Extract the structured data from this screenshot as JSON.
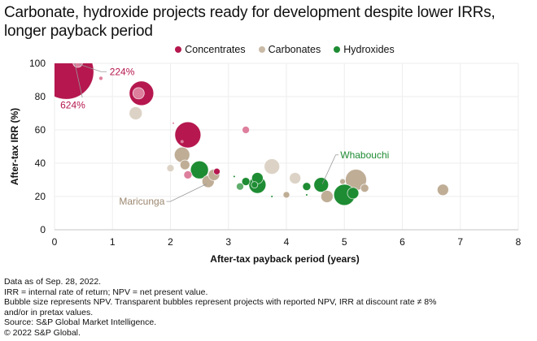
{
  "chart_data": {
    "type": "scatter",
    "subtype": "bubble",
    "title": "Carbonate, hydroxide projects ready for development despite lower IRRs, longer payback period",
    "xlabel": "After-tax payback period (years)",
    "ylabel": "After-tax IRR (%)",
    "xlim": [
      0,
      8
    ],
    "ylim": [
      0,
      100
    ],
    "xticks": [
      "0",
      "1",
      "2",
      "3",
      "4",
      "5",
      "6",
      "7",
      "8"
    ],
    "yticks": [
      "0",
      "20",
      "40",
      "60",
      "80",
      "100"
    ],
    "grid": true,
    "legend_position": "top-center",
    "legend": [
      {
        "name": "Concentrates",
        "color": "#b5174e"
      },
      {
        "name": "Carbonates",
        "color": "#bfad96"
      },
      {
        "name": "Hydroxides",
        "color": "#1e8c33"
      }
    ],
    "size_encoding": "NPV",
    "series": [
      {
        "name": "Concentrates",
        "color": "#b5174e",
        "points": [
          {
            "x": 0.2,
            "y": 624,
            "size": 34,
            "transparent": false,
            "label": "624%",
            "clipped": true
          },
          {
            "x": 0.4,
            "y": 224,
            "size": 6,
            "transparent": true,
            "label": "224%",
            "clipped": true
          },
          {
            "x": 0.8,
            "y": 91,
            "size": 2.5,
            "transparent": true
          },
          {
            "x": 1.5,
            "y": 82,
            "size": 15,
            "transparent": false
          },
          {
            "x": 1.45,
            "y": 82,
            "size": 7,
            "transparent": true
          },
          {
            "x": 2.3,
            "y": 57,
            "size": 16,
            "transparent": false
          },
          {
            "x": 2.2,
            "y": 53,
            "size": 2,
            "transparent": true
          },
          {
            "x": 2.8,
            "y": 35,
            "size": 4,
            "transparent": false
          },
          {
            "x": 2.3,
            "y": 33,
            "size": 5,
            "transparent": true
          },
          {
            "x": 3.3,
            "y": 60,
            "size": 4.5,
            "transparent": true
          },
          {
            "x": 2.05,
            "y": 64,
            "size": 0.8,
            "transparent": true
          }
        ]
      },
      {
        "name": "Carbonates",
        "color": "#bfad96",
        "points": [
          {
            "x": 1.4,
            "y": 70,
            "size": 8,
            "transparent": true
          },
          {
            "x": 2.2,
            "y": 45,
            "size": 9.5,
            "transparent": false
          },
          {
            "x": 2.25,
            "y": 39,
            "size": 6,
            "transparent": false
          },
          {
            "x": 2.0,
            "y": 37,
            "size": 4.5,
            "transparent": true
          },
          {
            "x": 2.75,
            "y": 33,
            "size": 7,
            "transparent": false
          },
          {
            "x": 2.65,
            "y": 29,
            "size": 7.5,
            "transparent": false
          },
          {
            "x": 3.75,
            "y": 38,
            "size": 9.5,
            "transparent": true
          },
          {
            "x": 4.15,
            "y": 31,
            "size": 7,
            "transparent": true
          },
          {
            "x": 4.0,
            "y": 21,
            "size": 4,
            "transparent": false
          },
          {
            "x": 4.7,
            "y": 20,
            "size": 7.5,
            "transparent": false
          },
          {
            "x": 5.2,
            "y": 30,
            "size": 13,
            "transparent": false
          },
          {
            "x": 4.97,
            "y": 29,
            "size": 3.5,
            "transparent": false
          },
          {
            "x": 5.35,
            "y": 25,
            "size": 5,
            "transparent": false
          },
          {
            "x": 6.7,
            "y": 24,
            "size": 7,
            "transparent": false
          }
        ]
      },
      {
        "name": "Hydroxides",
        "color": "#1e8c33",
        "points": [
          {
            "x": 2.5,
            "y": 36,
            "size": 11,
            "transparent": false
          },
          {
            "x": 3.2,
            "y": 26,
            "size": 4.5,
            "transparent": true
          },
          {
            "x": 3.3,
            "y": 29,
            "size": 5,
            "transparent": false
          },
          {
            "x": 3.45,
            "y": 27,
            "size": 4,
            "transparent": false
          },
          {
            "x": 3.5,
            "y": 31,
            "size": 7,
            "transparent": false
          },
          {
            "x": 3.5,
            "y": 27,
            "size": 10.5,
            "transparent": false
          },
          {
            "x": 3.1,
            "y": 32,
            "size": 1,
            "transparent": false
          },
          {
            "x": 3.75,
            "y": 20,
            "size": 1,
            "transparent": false
          },
          {
            "x": 4.35,
            "y": 26,
            "size": 5,
            "transparent": false
          },
          {
            "x": 4.6,
            "y": 27,
            "size": 9,
            "transparent": false,
            "label": "Whabouchi"
          },
          {
            "x": 4.35,
            "y": 21,
            "size": 1,
            "transparent": false
          },
          {
            "x": 5.15,
            "y": 22,
            "size": 7,
            "transparent": false
          },
          {
            "x": 5.0,
            "y": 21,
            "size": 13,
            "transparent": false
          }
        ]
      }
    ],
    "annotations": [
      {
        "text": "224%",
        "series": "Concentrates"
      },
      {
        "text": "624%",
        "series": "Concentrates"
      },
      {
        "text": "Maricunga",
        "series": "Carbonates",
        "x": 2.65,
        "y": 29
      },
      {
        "text": "Whabouchi",
        "series": "Hydroxides",
        "x": 4.6,
        "y": 27
      }
    ]
  },
  "notes": [
    "Data as of Sep. 28, 2022.",
    "IRR = internal rate of return; NPV = net present value.",
    "Bubble size represents NPV. Transparent bubbles represent projects with reported NPV, IRR at discount rate ≠ 8%",
    "and/or in pretax values.",
    "Source: S&P Global Market Intelligence.",
    "© 2022 S&P Global."
  ]
}
